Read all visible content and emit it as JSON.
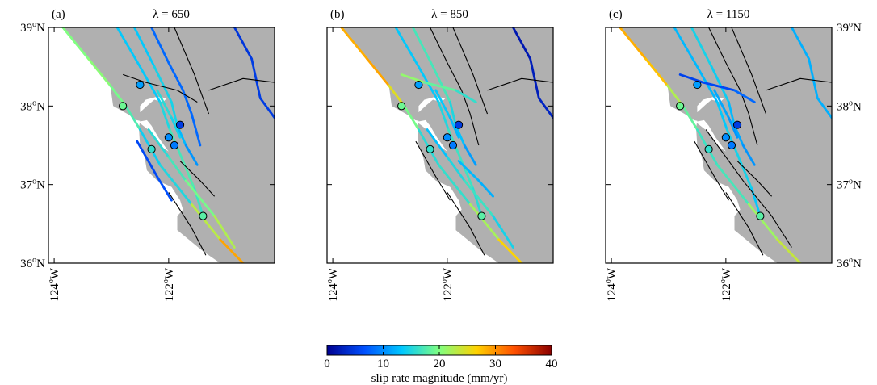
{
  "chart_data": {
    "type": "map",
    "panels": [
      {
        "tag": "(a)",
        "title": "λ = 650"
      },
      {
        "tag": "(b)",
        "title": "λ = 850"
      },
      {
        "tag": "(c)",
        "title": "λ = 1150"
      }
    ],
    "lat_ticks": [
      {
        "value": 39,
        "num": "39",
        "sup": "o",
        "hem": "N"
      },
      {
        "value": 38,
        "num": "38",
        "sup": "o",
        "hem": "N"
      },
      {
        "value": 37,
        "num": "37",
        "sup": "o",
        "hem": "N"
      },
      {
        "value": 36,
        "num": "36",
        "sup": "o",
        "hem": "N"
      }
    ],
    "lon_ticks": [
      {
        "value": -124,
        "num": "124",
        "sup": "o",
        "hem": "W"
      },
      {
        "value": -122,
        "num": "122",
        "sup": "o",
        "hem": "W"
      }
    ],
    "lon_range": [
      -124.1,
      -120.15
    ],
    "lat_range": [
      36,
      39
    ],
    "colorbar": {
      "label": "slip rate magnitude (mm/yr)",
      "ticks": [
        "0",
        "10",
        "20",
        "30",
        "40"
      ],
      "range": [
        0,
        40
      ],
      "colors": [
        "#000090",
        "#0050ff",
        "#00c8ff",
        "#80ff80",
        "#ffd200",
        "#ff5000",
        "#8a0000"
      ]
    },
    "stations": [
      {
        "lon": -122.5,
        "lat": 38.27
      },
      {
        "lon": -122.8,
        "lat": 38.0
      },
      {
        "lon": -121.8,
        "lat": 37.76
      },
      {
        "lon": -122.0,
        "lat": 37.6
      },
      {
        "lon": -121.9,
        "lat": 37.5
      },
      {
        "lon": -122.3,
        "lat": 37.45
      },
      {
        "lon": -121.4,
        "lat": 36.6
      }
    ]
  }
}
